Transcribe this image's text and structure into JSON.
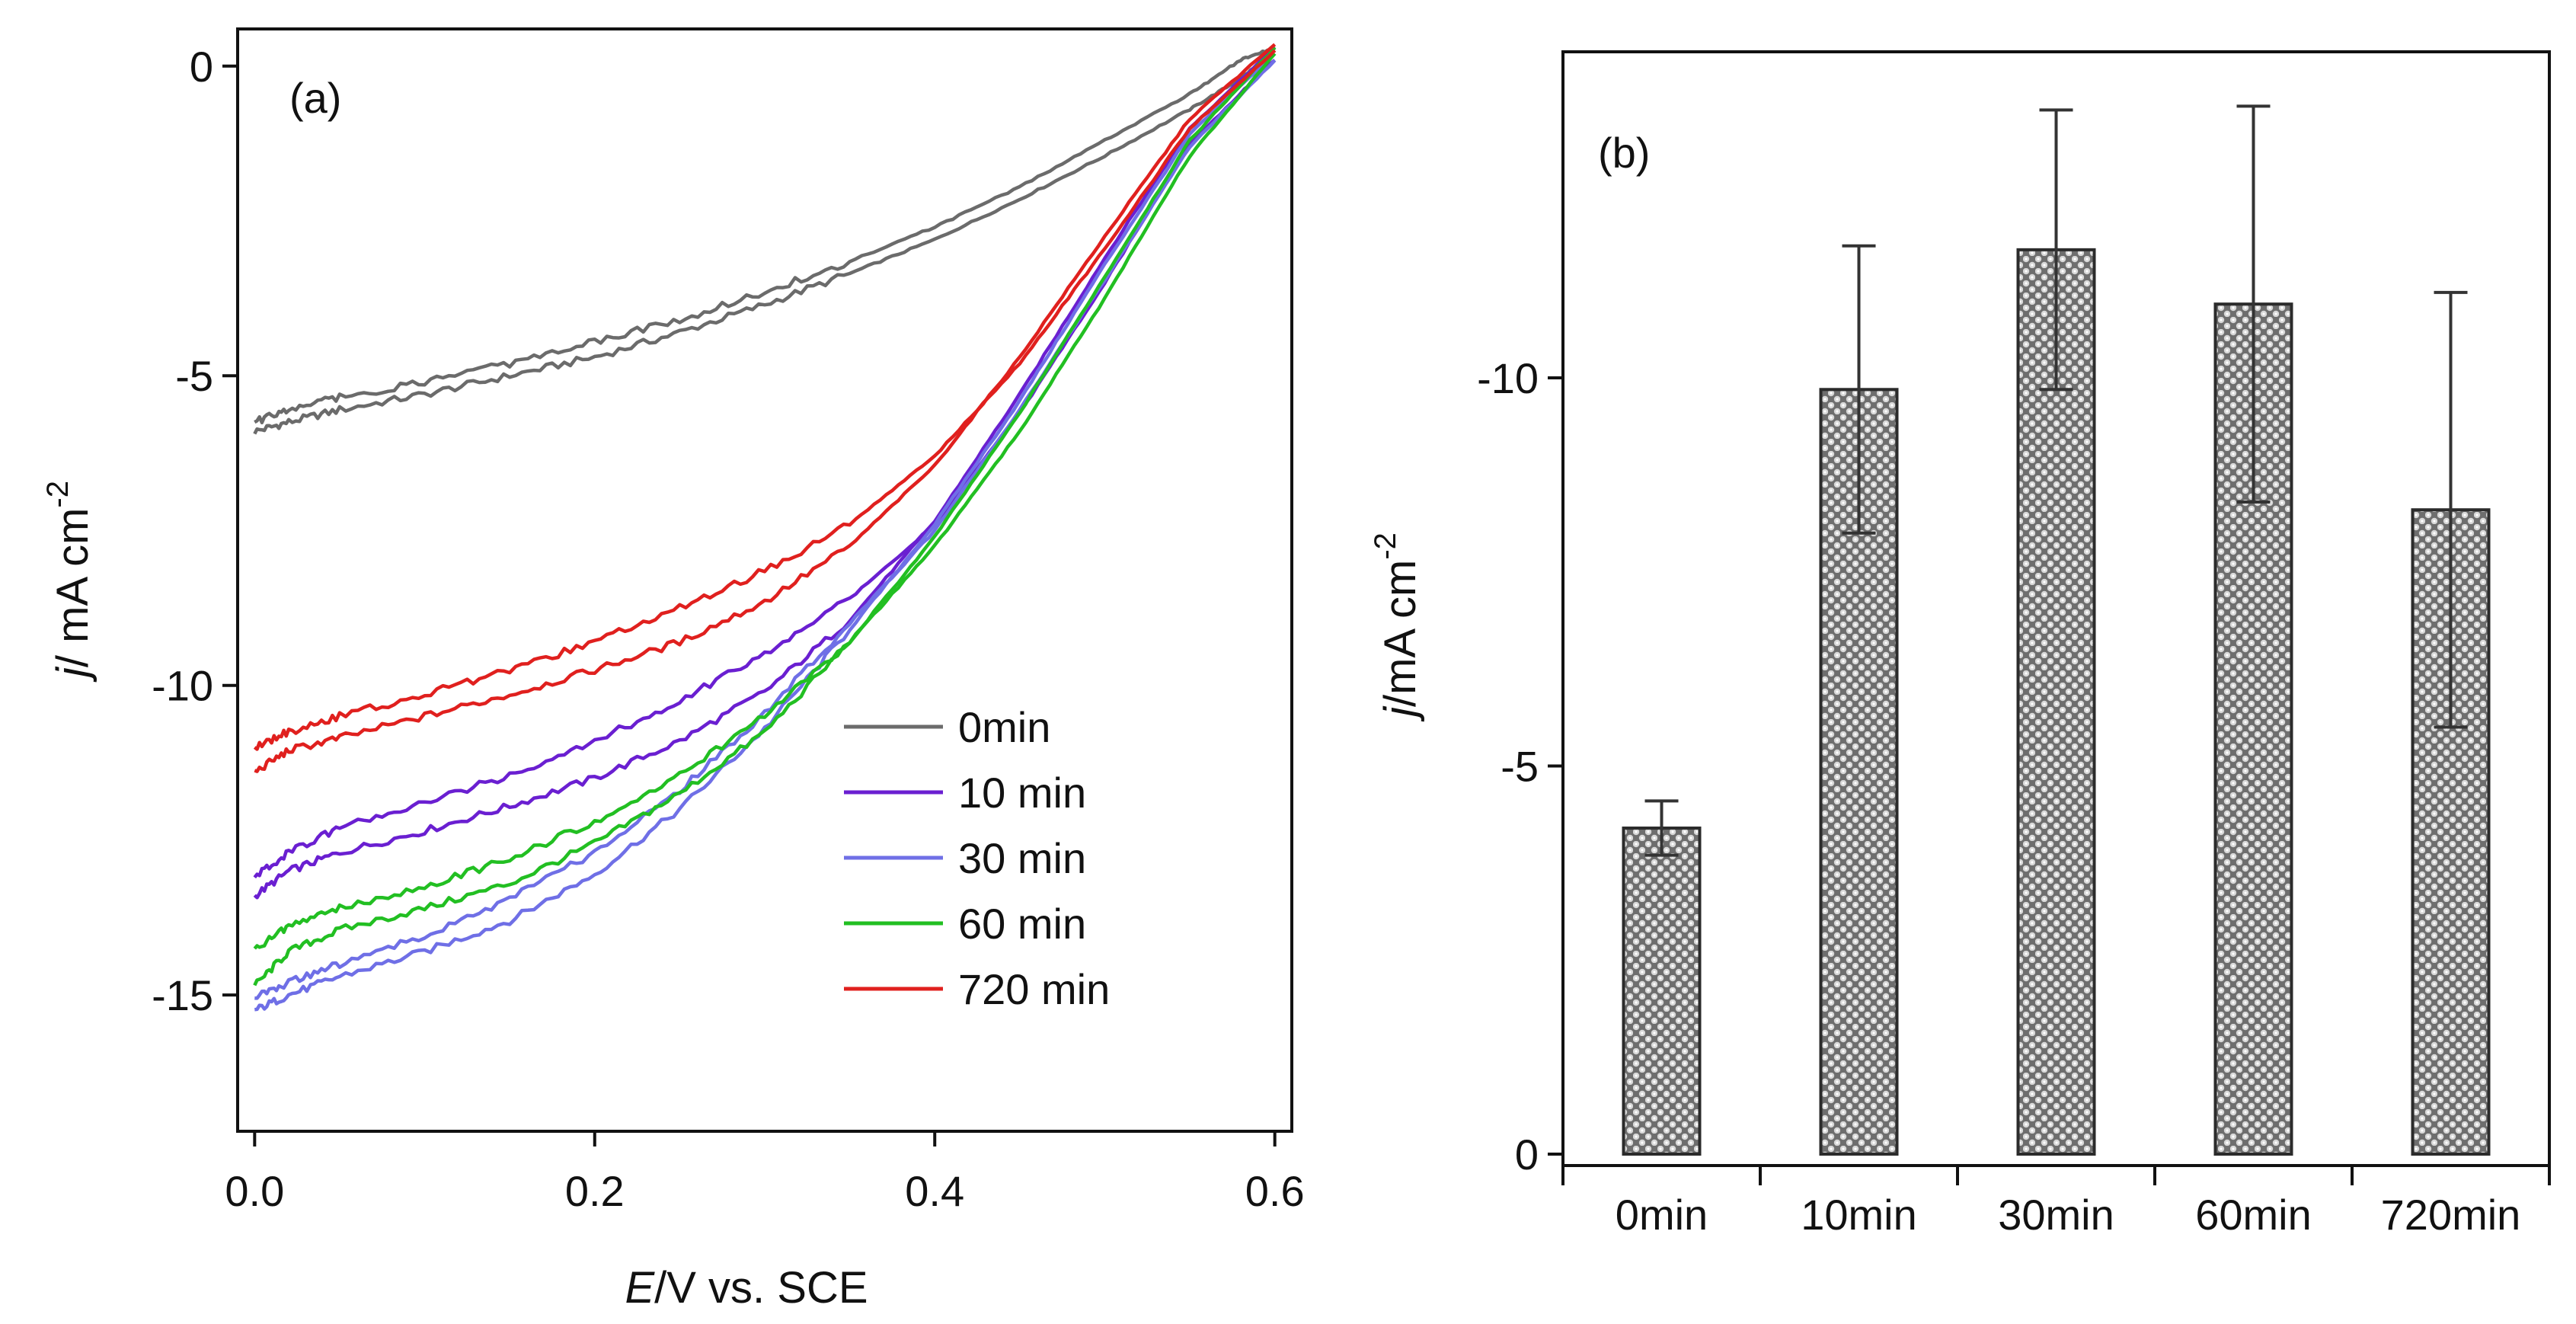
{
  "colors": {
    "axis": "#111111",
    "bar_fill": "#6e6e6e",
    "bar_edge": "#2b2b2b",
    "error_bar": "#333333"
  },
  "chart_data": [
    {
      "type": "line",
      "panel_label": "(a)",
      "xlabel_italic": "E",
      "xlabel_rest": "/V vs. SCE",
      "ylabel_italic": "j",
      "ylabel_rest": "/ mA cm",
      "ylabel_sup": "-2",
      "xlim": [
        -0.01,
        0.61
      ],
      "ylim": [
        -17.2,
        0.6
      ],
      "xticks": [
        0.0,
        0.2,
        0.4,
        0.6
      ],
      "xtick_labels": [
        "0.0",
        "0.2",
        "0.4",
        "0.6"
      ],
      "yticks": [
        0,
        -5,
        -10,
        -15
      ],
      "ytick_labels": [
        "0",
        "-5",
        "-10",
        "-15"
      ],
      "legend_position": "bottom-right",
      "series": [
        {
          "name": "0min",
          "color": "#6b6b6b",
          "forward": [
            [
              0.0,
              -5.9
            ],
            [
              0.02,
              -5.75
            ],
            [
              0.05,
              -5.55
            ],
            [
              0.1,
              -5.3
            ],
            [
              0.15,
              -5.0
            ],
            [
              0.2,
              -4.7
            ],
            [
              0.25,
              -4.3
            ],
            [
              0.3,
              -3.85
            ],
            [
              0.35,
              -3.35
            ],
            [
              0.4,
              -2.8
            ],
            [
              0.45,
              -2.15
            ],
            [
              0.5,
              -1.45
            ],
            [
              0.55,
              -0.7
            ],
            [
              0.58,
              -0.2
            ],
            [
              0.6,
              0.25
            ]
          ],
          "reverse": [
            [
              0.6,
              0.3
            ],
            [
              0.58,
              0.1
            ],
            [
              0.55,
              -0.45
            ],
            [
              0.5,
              -1.2
            ],
            [
              0.45,
              -1.95
            ],
            [
              0.4,
              -2.6
            ],
            [
              0.35,
              -3.15
            ],
            [
              0.3,
              -3.65
            ],
            [
              0.25,
              -4.1
            ],
            [
              0.2,
              -4.45
            ],
            [
              0.15,
              -4.8
            ],
            [
              0.1,
              -5.1
            ],
            [
              0.05,
              -5.35
            ],
            [
              0.02,
              -5.55
            ],
            [
              0.0,
              -5.75
            ]
          ]
        },
        {
          "name": "10 min",
          "color": "#6a1fd1",
          "forward": [
            [
              0.0,
              -13.4
            ],
            [
              0.02,
              -13.0
            ],
            [
              0.05,
              -12.7
            ],
            [
              0.1,
              -12.35
            ],
            [
              0.15,
              -11.95
            ],
            [
              0.2,
              -11.5
            ],
            [
              0.25,
              -10.9
            ],
            [
              0.3,
              -10.1
            ],
            [
              0.35,
              -8.95
            ],
            [
              0.4,
              -7.35
            ],
            [
              0.45,
              -5.3
            ],
            [
              0.5,
              -3.1
            ],
            [
              0.55,
              -1.0
            ],
            [
              0.6,
              0.3
            ]
          ],
          "reverse": [
            [
              0.6,
              0.1
            ],
            [
              0.55,
              -1.25
            ],
            [
              0.5,
              -3.5
            ],
            [
              0.45,
              -5.6
            ],
            [
              0.4,
              -7.4
            ],
            [
              0.35,
              -8.6
            ],
            [
              0.3,
              -9.5
            ],
            [
              0.25,
              -10.25
            ],
            [
              0.2,
              -10.9
            ],
            [
              0.15,
              -11.45
            ],
            [
              0.1,
              -11.9
            ],
            [
              0.05,
              -12.3
            ],
            [
              0.02,
              -12.7
            ],
            [
              0.0,
              -13.1
            ]
          ]
        },
        {
          "name": "30 min",
          "color": "#6f6fe6",
          "forward": [
            [
              0.0,
              -15.25
            ],
            [
              0.02,
              -15.0
            ],
            [
              0.05,
              -14.7
            ],
            [
              0.1,
              -14.3
            ],
            [
              0.15,
              -13.8
            ],
            [
              0.2,
              -13.05
            ],
            [
              0.25,
              -12.0
            ],
            [
              0.3,
              -10.7
            ],
            [
              0.35,
              -9.1
            ],
            [
              0.4,
              -7.4
            ],
            [
              0.45,
              -5.4
            ],
            [
              0.5,
              -3.2
            ],
            [
              0.55,
              -1.1
            ],
            [
              0.6,
              0.2
            ]
          ],
          "reverse": [
            [
              0.6,
              0.1
            ],
            [
              0.55,
              -1.3
            ],
            [
              0.5,
              -3.45
            ],
            [
              0.45,
              -5.55
            ],
            [
              0.4,
              -7.5
            ],
            [
              0.35,
              -9.0
            ],
            [
              0.3,
              -10.45
            ],
            [
              0.25,
              -11.7
            ],
            [
              0.2,
              -12.7
            ],
            [
              0.15,
              -13.45
            ],
            [
              0.1,
              -14.05
            ],
            [
              0.05,
              -14.5
            ],
            [
              0.02,
              -14.8
            ],
            [
              0.0,
              -15.05
            ]
          ]
        },
        {
          "name": "60 min",
          "color": "#22bf22",
          "forward": [
            [
              0.0,
              -14.85
            ],
            [
              0.02,
              -14.3
            ],
            [
              0.05,
              -13.95
            ],
            [
              0.1,
              -13.6
            ],
            [
              0.15,
              -13.2
            ],
            [
              0.2,
              -12.55
            ],
            [
              0.25,
              -11.75
            ],
            [
              0.3,
              -10.75
            ],
            [
              0.35,
              -9.3
            ],
            [
              0.4,
              -7.6
            ],
            [
              0.45,
              -5.6
            ],
            [
              0.5,
              -3.4
            ],
            [
              0.55,
              -1.2
            ],
            [
              0.6,
              0.3
            ]
          ],
          "reverse": [
            [
              0.6,
              0.2
            ],
            [
              0.55,
              -1.45
            ],
            [
              0.5,
              -3.75
            ],
            [
              0.45,
              -5.9
            ],
            [
              0.4,
              -7.75
            ],
            [
              0.35,
              -9.3
            ],
            [
              0.3,
              -10.5
            ],
            [
              0.25,
              -11.45
            ],
            [
              0.2,
              -12.2
            ],
            [
              0.15,
              -12.8
            ],
            [
              0.1,
              -13.25
            ],
            [
              0.05,
              -13.6
            ],
            [
              0.02,
              -13.9
            ],
            [
              0.0,
              -14.25
            ]
          ]
        },
        {
          "name": "720 min",
          "color": "#e0201e",
          "forward": [
            [
              0.0,
              -11.4
            ],
            [
              0.02,
              -11.05
            ],
            [
              0.05,
              -10.85
            ],
            [
              0.1,
              -10.5
            ],
            [
              0.15,
              -10.15
            ],
            [
              0.2,
              -9.75
            ],
            [
              0.25,
              -9.3
            ],
            [
              0.3,
              -8.65
            ],
            [
              0.35,
              -7.75
            ],
            [
              0.4,
              -6.45
            ],
            [
              0.45,
              -4.7
            ],
            [
              0.5,
              -2.75
            ],
            [
              0.55,
              -0.85
            ],
            [
              0.6,
              0.35
            ]
          ],
          "reverse": [
            [
              0.6,
              0.25
            ],
            [
              0.55,
              -1.0
            ],
            [
              0.5,
              -2.95
            ],
            [
              0.45,
              -4.8
            ],
            [
              0.4,
              -6.3
            ],
            [
              0.35,
              -7.4
            ],
            [
              0.3,
              -8.15
            ],
            [
              0.25,
              -8.75
            ],
            [
              0.2,
              -9.3
            ],
            [
              0.15,
              -9.75
            ],
            [
              0.1,
              -10.15
            ],
            [
              0.05,
              -10.5
            ],
            [
              0.02,
              -10.75
            ],
            [
              0.0,
              -11.0
            ]
          ]
        }
      ]
    },
    {
      "type": "bar",
      "panel_label": "(b)",
      "ylabel_italic": "j",
      "ylabel_rest": "/mA cm",
      "ylabel_sup": "-2",
      "categories": [
        "0min",
        "10min",
        "30min",
        "60min",
        "720min"
      ],
      "values": [
        -4.2,
        -9.85,
        -11.65,
        -10.95,
        -8.3
      ],
      "errors": [
        0.35,
        1.85,
        1.8,
        2.55,
        2.8
      ],
      "ylim": [
        0,
        -14.2
      ],
      "yticks": [
        0,
        -5,
        -10
      ],
      "ytick_labels": [
        "0",
        "-5",
        "-10"
      ],
      "bar_pattern": "dotted"
    }
  ]
}
